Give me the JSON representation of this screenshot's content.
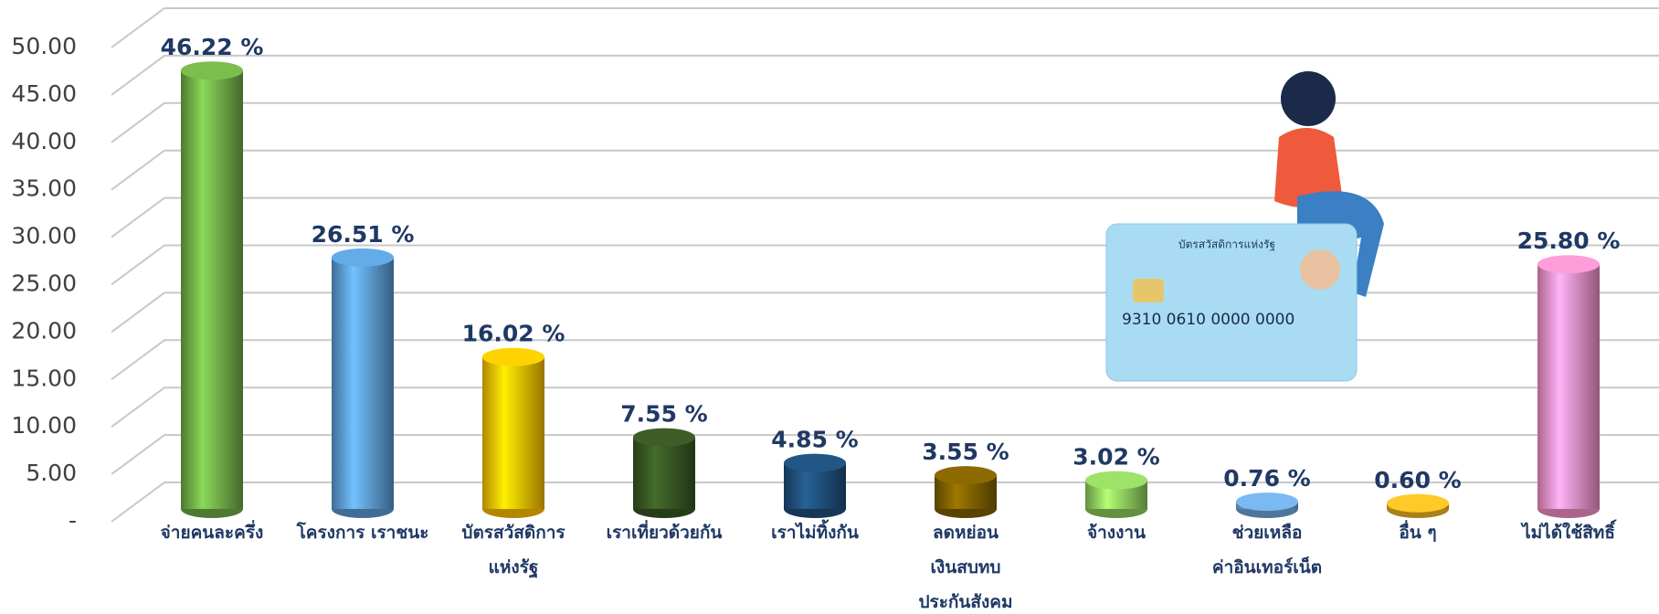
{
  "chart_data": {
    "type": "bar",
    "categories": [
      "จ่ายคนละครึ่ง",
      "โครงการ เราชนะ",
      "บัตรสวัสดิการ\nแห่งรัฐ",
      "เราเที่ยวด้วยกัน",
      "เราไม่ทิ้งกัน",
      "ลดหย่อน\nเงินสบทบ\nประกันสังคม",
      "จ้างงาน",
      "ช่วยเหลือ\nค่าอินเทอร์เน็ต",
      "อื่น ๆ",
      "ไม่ได้ใช้สิทธิ์"
    ],
    "values": [
      46.22,
      26.51,
      16.02,
      7.55,
      4.85,
      3.55,
      3.02,
      0.76,
      0.6,
      25.8
    ],
    "value_labels": [
      "46.22 %",
      "26.51 %",
      "16.02 %",
      "7.55 %",
      "4.85 %",
      "3.55 %",
      "3.02 %",
      "0.76 %",
      "0.60 %",
      "25.80 %"
    ],
    "colors": [
      "#70ad47",
      "#5b9bd5",
      "#ffc000",
      "#375623",
      "#1f4e79",
      "#7f6000",
      "#8fce5e",
      "#6fa8dc",
      "#f2b824",
      "#f48fc6"
    ],
    "ylim": [
      0,
      50
    ],
    "yticks": [
      {
        "value": 0,
        "label": "-"
      },
      {
        "value": 5,
        "label": "5.00"
      },
      {
        "value": 10,
        "label": "10.00"
      },
      {
        "value": 15,
        "label": "15.00"
      },
      {
        "value": 20,
        "label": "20.00"
      },
      {
        "value": 25,
        "label": "25.00"
      },
      {
        "value": 30,
        "label": "30.00"
      },
      {
        "value": 35,
        "label": "35.00"
      },
      {
        "value": 40,
        "label": "40.00"
      },
      {
        "value": 45,
        "label": "45.00"
      },
      {
        "value": 50,
        "label": "50.00"
      }
    ],
    "grid": true
  },
  "card": {
    "title": "บัตรสวัสดิการแห่งรัฐ",
    "number": "9310 0610 0000 0000"
  }
}
